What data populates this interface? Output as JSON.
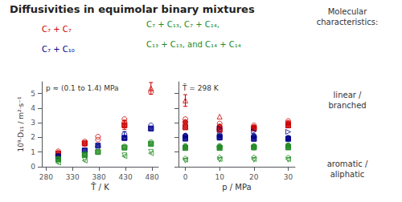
{
  "chart_data": [
    {
      "type": "scatter",
      "title": "Diffusivities in equimolar binary mixtures",
      "xlabel": "T̄ / K",
      "ylabel": "10⁹·D₁₁ / m²·s⁻¹",
      "annotations": [
        {
          "text": "p ≈ (0.1 to 1.4) MPa"
        },
        {
          "text": "C₇ + C₇",
          "color": "#cc0000"
        },
        {
          "text": "C₇ + C₁₀",
          "color": "#00008B"
        },
        {
          "text": "C₇ + C₁₃, C₇ + C₁₄,",
          "color": "#228B22"
        },
        {
          "text": "C₁₃ + C₁₃, and C₁₄ + C₁₄",
          "color": "#228B22"
        }
      ],
      "xlim": [
        272,
        492
      ],
      "xticks": [
        280,
        330,
        380,
        430,
        480
      ],
      "ylim": [
        0,
        5.8
      ],
      "yticks": [
        0,
        1,
        2,
        3,
        4,
        5
      ],
      "grid": false,
      "series": [
        {
          "type": "scatter",
          "color": "#cc0000",
          "marker": "open_circle",
          "x": [
            303,
            303,
            353,
            353,
            378,
            378,
            428,
            428,
            478
          ],
          "y": [
            0.95,
            1.05,
            1.55,
            1.72,
            1.85,
            2.05,
            3.05,
            3.25,
            5.1
          ]
        },
        {
          "type": "scatter",
          "color": "#cc0000",
          "marker": "open_square",
          "x": [
            303,
            353,
            428
          ],
          "y": [
            0.9,
            1.62,
            2.85
          ]
        },
        {
          "type": "scatter",
          "color": "#cc0000",
          "marker": "open_triangle_up",
          "x": [
            478
          ],
          "y": [
            5.35
          ]
        },
        {
          "type": "scatter",
          "color": "#cc0000",
          "marker": "square",
          "x": [
            303,
            353,
            428
          ],
          "y": [
            0.88,
            1.58,
            2.82
          ]
        },
        {
          "type": "errorbar",
          "color": "#cc0000",
          "x": [
            478,
            428
          ],
          "y": [
            5.35,
            2.85
          ],
          "yerr": [
            0.4,
            0.3
          ]
        },
        {
          "type": "scatter",
          "color": "#00008B",
          "marker": "open_circle",
          "x": [
            303,
            378,
            428,
            478
          ],
          "y": [
            0.75,
            1.35,
            2.22,
            2.82
          ]
        },
        {
          "type": "scatter",
          "color": "#00008B",
          "marker": "open_square",
          "x": [
            303,
            353,
            428,
            478
          ],
          "y": [
            0.68,
            1.12,
            1.98,
            2.62
          ]
        },
        {
          "type": "scatter",
          "color": "#00008B",
          "marker": "open_triangle_up",
          "x": [
            353,
            428
          ],
          "y": [
            0.92,
            2.02
          ]
        },
        {
          "type": "scatter",
          "color": "#00008B",
          "marker": "square",
          "x": [
            303,
            353,
            378,
            428,
            478
          ],
          "y": [
            0.7,
            1.1,
            1.45,
            1.95,
            2.6
          ]
        },
        {
          "type": "errorbar",
          "color": "#00008B",
          "x": [
            428
          ],
          "y": [
            2.22
          ],
          "yerr": [
            0.18
          ]
        },
        {
          "type": "scatter",
          "color": "#228B22",
          "marker": "open_circle",
          "x": [
            303,
            353,
            428,
            478
          ],
          "y": [
            0.55,
            0.88,
            1.38,
            1.68
          ]
        },
        {
          "type": "scatter",
          "color": "#228B22",
          "marker": "open_square",
          "x": [
            303,
            353,
            378,
            428,
            478
          ],
          "y": [
            0.52,
            0.82,
            1.02,
            1.32,
            1.58
          ]
        },
        {
          "type": "scatter",
          "color": "#228B22",
          "marker": "open_triangle_down",
          "x": [
            303,
            353,
            428,
            478
          ],
          "y": [
            0.32,
            0.48,
            0.78,
            1.02
          ]
        },
        {
          "type": "scatter",
          "color": "#228B22",
          "marker": "open_triangle_left",
          "x": [
            303,
            353,
            428,
            478
          ],
          "y": [
            0.28,
            0.42,
            0.72,
            0.92
          ]
        },
        {
          "type": "scatter",
          "color": "#228B22",
          "marker": "square",
          "x": [
            303,
            353,
            378,
            428,
            478
          ],
          "y": [
            0.5,
            0.8,
            1.0,
            1.3,
            1.55
          ]
        }
      ]
    },
    {
      "type": "scatter",
      "xlabel": "p / MPa",
      "annotations": [
        {
          "text": "T̄ = 298 K"
        },
        {
          "text": "Molecular\ncharacteristics:"
        },
        {
          "text": "linear /\nbranched"
        },
        {
          "text": "aromatic /\naliphatic"
        }
      ],
      "xlim": [
        -2,
        32
      ],
      "xticks": [
        0,
        10,
        20,
        30
      ],
      "ylim": [
        0,
        5.8
      ],
      "yticks": [
        0,
        1,
        2,
        3,
        4,
        5
      ],
      "tick_labels": "x",
      "grid": false,
      "series": [
        {
          "type": "scatter",
          "color": "#cc0000",
          "marker": "open_circle",
          "x": [
            0,
            0,
            0,
            10,
            10,
            10,
            20,
            20,
            30,
            30
          ],
          "y": [
            2.85,
            3.05,
            3.25,
            2.55,
            2.75,
            2.95,
            2.62,
            2.82,
            2.92,
            3.12
          ]
        },
        {
          "type": "scatter",
          "color": "#cc0000",
          "marker": "open_square",
          "x": [
            0,
            10,
            20,
            30
          ],
          "y": [
            2.72,
            2.52,
            2.62,
            2.82
          ]
        },
        {
          "type": "scatter",
          "color": "#cc0000",
          "marker": "open_triangle_up",
          "x": [
            0,
            10
          ],
          "y": [
            4.52,
            3.42
          ]
        },
        {
          "type": "scatter",
          "color": "#cc0000",
          "marker": "circle",
          "x": [
            0,
            10,
            20,
            30
          ],
          "y": [
            3.05,
            2.75,
            2.72,
            3.0
          ]
        },
        {
          "type": "scatter",
          "color": "#cc0000",
          "marker": "square",
          "x": [
            0,
            10,
            20,
            30
          ],
          "y": [
            2.68,
            2.52,
            2.62,
            2.82
          ]
        },
        {
          "type": "errorbar",
          "color": "#cc0000",
          "x": [
            0
          ],
          "y": [
            4.52
          ],
          "yerr": [
            0.4
          ]
        },
        {
          "type": "scatter",
          "color": "#00008B",
          "marker": "open_circle",
          "x": [
            0,
            0,
            10,
            10,
            20,
            20,
            30
          ],
          "y": [
            2.02,
            2.12,
            2.02,
            2.22,
            2.02,
            2.12,
            1.98
          ]
        },
        {
          "type": "scatter",
          "color": "#00008B",
          "marker": "open_square",
          "x": [
            0,
            10,
            20,
            30
          ],
          "y": [
            1.92,
            2.02,
            1.92,
            1.92
          ]
        },
        {
          "type": "scatter",
          "color": "#00008B",
          "marker": "open_triangle_right",
          "x": [
            10,
            20,
            30
          ],
          "y": [
            2.62,
            2.42,
            2.38
          ]
        },
        {
          "type": "scatter",
          "color": "#00008B",
          "marker": "circle",
          "x": [
            0,
            10,
            20,
            30
          ],
          "y": [
            2.12,
            2.12,
            2.08,
            1.95
          ]
        },
        {
          "type": "scatter",
          "color": "#00008B",
          "marker": "square",
          "x": [
            0,
            10,
            20,
            30
          ],
          "y": [
            1.92,
            1.98,
            1.9,
            1.9
          ]
        },
        {
          "type": "scatter",
          "color": "#228B22",
          "marker": "open_circle",
          "x": [
            0,
            0,
            10,
            10,
            20,
            20,
            30,
            30
          ],
          "y": [
            1.32,
            1.42,
            1.32,
            1.42,
            1.32,
            1.42,
            1.38,
            1.48
          ]
        },
        {
          "type": "scatter",
          "color": "#228B22",
          "marker": "open_square",
          "x": [
            0,
            10,
            20,
            30
          ],
          "y": [
            1.28,
            1.28,
            1.32,
            1.32
          ]
        },
        {
          "type": "scatter",
          "color": "#228B22",
          "marker": "open_triangle_down",
          "x": [
            0,
            10,
            20,
            30
          ],
          "y": [
            0.42,
            0.48,
            0.48,
            0.48
          ]
        },
        {
          "type": "scatter",
          "color": "#228B22",
          "marker": "open_triangle_left",
          "x": [
            0,
            10,
            20,
            30
          ],
          "y": [
            0.48,
            0.52,
            0.52,
            0.52
          ]
        },
        {
          "type": "scatter",
          "color": "#228B22",
          "marker": "open_diamond",
          "x": [
            0,
            10,
            20,
            30
          ],
          "y": [
            0.62,
            0.68,
            0.68,
            0.68
          ]
        },
        {
          "type": "scatter",
          "color": "#228B22",
          "marker": "circle",
          "x": [
            0,
            10,
            20,
            30
          ],
          "y": [
            1.38,
            1.38,
            1.38,
            1.45
          ]
        },
        {
          "type": "scatter",
          "color": "#228B22",
          "marker": "square",
          "x": [
            0,
            10,
            20,
            30
          ],
          "y": [
            1.28,
            1.28,
            1.32,
            1.32
          ]
        }
      ]
    }
  ]
}
